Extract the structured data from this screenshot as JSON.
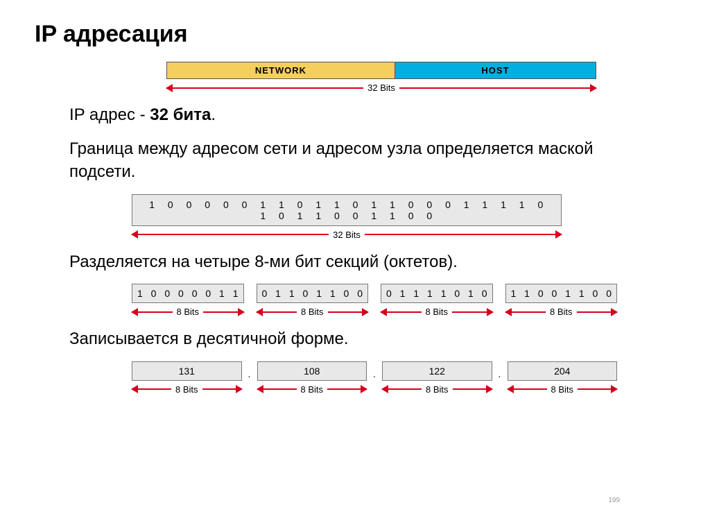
{
  "colors": {
    "arrow": "#d6001c",
    "network_bg": "#f4cf5d",
    "host_bg": "#05aee0",
    "box_bg": "#e8e8e8",
    "box_border": "#777777",
    "text": "#000000",
    "title": "#000000"
  },
  "title": "IP адресация",
  "top_bar": {
    "network_label": "NETWORK",
    "host_label": "HOST",
    "width_label": "32 Bits"
  },
  "line1_prefix": "IP адрес -  ",
  "line1_bold": "32 бита",
  "line1_suffix": ".",
  "line2": "Граница между адресом сети и адресом узла определяется маской подсети.",
  "bits32_value": "10000011011011000111101011001100",
  "bits32_label": "32 Bits",
  "line3": "Разделяется на четыре 8-ми бит секций (октетов).",
  "octets_bin": [
    "10000011",
    "01101100",
    "01111010",
    "11001100"
  ],
  "octet_label": "8 Bits",
  "line4": "Записывается в десятичной форме.",
  "octets_dec": [
    "131",
    "108",
    "122",
    "204"
  ],
  "dot": ".",
  "corner_note": "199",
  "typography": {
    "title_fontsize": 34,
    "body_fontsize": 24,
    "label_fontsize": 13,
    "box_fontsize": 14
  }
}
